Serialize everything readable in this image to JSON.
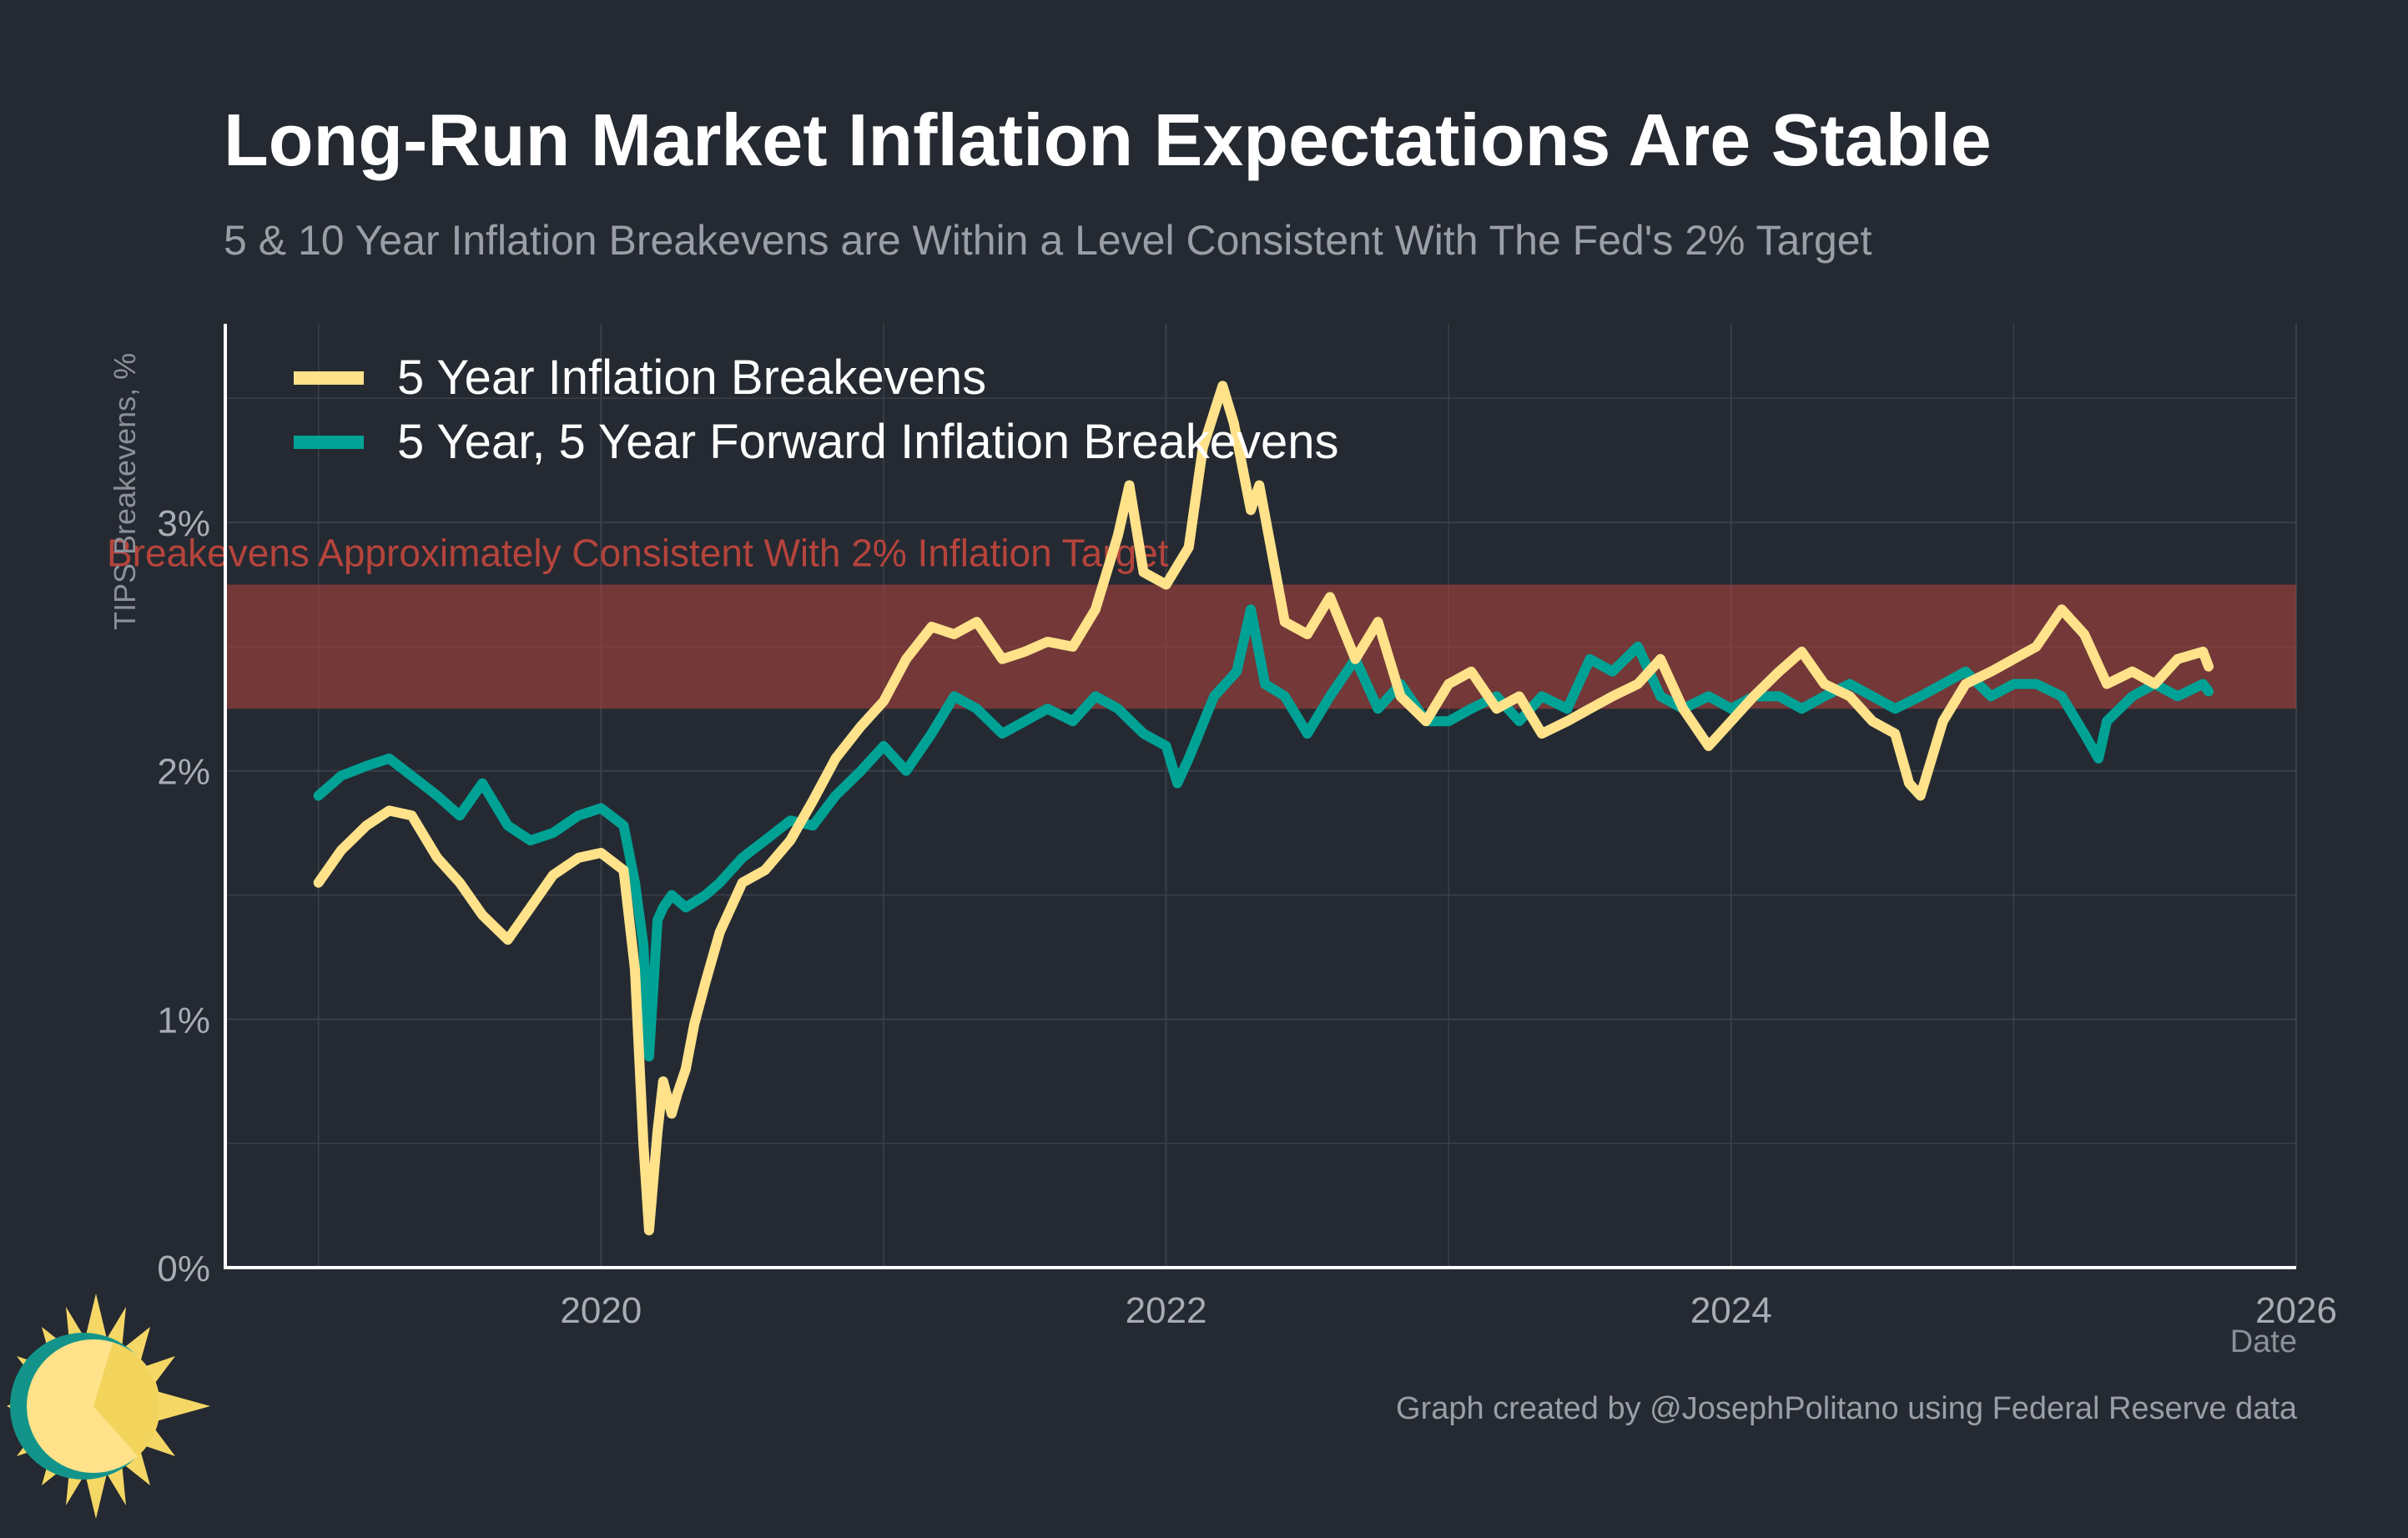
{
  "colors": {
    "background": "#252a32",
    "series_5y": "#ffe28a",
    "series_5y5y": "#00a296",
    "band": "#b5443c",
    "grid": "#3a3f48",
    "axis": "#ffffff"
  },
  "chart_data": {
    "type": "line",
    "title": "Long-Run Market Inflation Expectations Are Stable",
    "subtitle": "5 & 10 Year Inflation Breakevens are Within a Level Consistent With The Fed's 2% Target",
    "xlabel": "Date",
    "ylabel": "TIPS Breakevens, %",
    "xlim": [
      2018.67,
      2026.0
    ],
    "ylim": [
      0,
      3.8
    ],
    "x_ticks": [
      2020,
      2022,
      2024,
      2026
    ],
    "x_tick_labels": [
      "2020",
      "2022",
      "2024",
      "2026"
    ],
    "y_ticks": [
      0,
      1,
      2,
      3
    ],
    "y_tick_labels": [
      "0%",
      "1%",
      "2%",
      "3%"
    ],
    "grid": true,
    "legend_position": "top-left",
    "caption": "Graph created by @JosephPolitano using Federal Reserve data",
    "band": {
      "label": "Breakevens Approximately Consistent With 2% Inflation Target",
      "y_range": [
        2.25,
        2.75
      ]
    },
    "series": [
      {
        "name": "5 Year Inflation Breakevens",
        "color": "#ffe28a",
        "x": [
          2019.0,
          2019.08,
          2019.17,
          2019.25,
          2019.33,
          2019.42,
          2019.5,
          2019.58,
          2019.67,
          2019.75,
          2019.83,
          2019.92,
          2020.0,
          2020.08,
          2020.12,
          2020.15,
          2020.17,
          2020.2,
          2020.22,
          2020.25,
          2020.27,
          2020.3,
          2020.33,
          2020.37,
          2020.42,
          2020.5,
          2020.58,
          2020.67,
          2020.75,
          2020.83,
          2020.92,
          2021.0,
          2021.08,
          2021.17,
          2021.25,
          2021.33,
          2021.42,
          2021.5,
          2021.58,
          2021.67,
          2021.75,
          2021.83,
          2021.87,
          2021.92,
          2022.0,
          2022.08,
          2022.13,
          2022.2,
          2022.24,
          2022.3,
          2022.33,
          2022.42,
          2022.5,
          2022.58,
          2022.67,
          2022.75,
          2022.83,
          2022.92,
          2023.0,
          2023.08,
          2023.17,
          2023.25,
          2023.33,
          2023.42,
          2023.5,
          2023.58,
          2023.67,
          2023.75,
          2023.83,
          2023.92,
          2024.0,
          2024.08,
          2024.17,
          2024.25,
          2024.33,
          2024.42,
          2024.5,
          2024.58,
          2024.63,
          2024.67,
          2024.75,
          2024.83,
          2024.92,
          2025.0,
          2025.08,
          2025.17,
          2025.25,
          2025.33,
          2025.42,
          2025.5,
          2025.58,
          2025.67,
          2025.69
        ],
        "values": [
          1.55,
          1.68,
          1.78,
          1.84,
          1.82,
          1.65,
          1.55,
          1.42,
          1.32,
          1.45,
          1.58,
          1.65,
          1.67,
          1.6,
          1.2,
          0.5,
          0.15,
          0.55,
          0.75,
          0.62,
          0.7,
          0.8,
          0.98,
          1.15,
          1.35,
          1.55,
          1.6,
          1.72,
          1.88,
          2.05,
          2.18,
          2.28,
          2.45,
          2.58,
          2.55,
          2.6,
          2.45,
          2.48,
          2.52,
          2.5,
          2.65,
          2.95,
          3.15,
          2.8,
          2.75,
          2.9,
          3.3,
          3.55,
          3.4,
          3.05,
          3.15,
          2.6,
          2.55,
          2.7,
          2.45,
          2.6,
          2.3,
          2.2,
          2.35,
          2.4,
          2.25,
          2.3,
          2.15,
          2.2,
          2.25,
          2.3,
          2.35,
          2.45,
          2.25,
          2.1,
          2.2,
          2.3,
          2.4,
          2.48,
          2.35,
          2.3,
          2.2,
          2.15,
          1.95,
          1.9,
          2.2,
          2.35,
          2.4,
          2.45,
          2.5,
          2.65,
          2.55,
          2.35,
          2.4,
          2.35,
          2.45,
          2.48,
          2.42
        ]
      },
      {
        "name": "5 Year, 5 Year Forward Inflation Breakevens",
        "color": "#00a296",
        "x": [
          2019.0,
          2019.08,
          2019.17,
          2019.25,
          2019.33,
          2019.42,
          2019.5,
          2019.58,
          2019.67,
          2019.75,
          2019.83,
          2019.92,
          2020.0,
          2020.08,
          2020.12,
          2020.15,
          2020.17,
          2020.2,
          2020.22,
          2020.25,
          2020.3,
          2020.37,
          2020.42,
          2020.5,
          2020.58,
          2020.67,
          2020.75,
          2020.83,
          2020.92,
          2021.0,
          2021.08,
          2021.17,
          2021.25,
          2021.33,
          2021.42,
          2021.5,
          2021.58,
          2021.67,
          2021.75,
          2021.83,
          2021.92,
          2022.0,
          2022.04,
          2022.08,
          2022.17,
          2022.25,
          2022.3,
          2022.35,
          2022.42,
          2022.5,
          2022.58,
          2022.67,
          2022.75,
          2022.83,
          2022.92,
          2023.0,
          2023.08,
          2023.17,
          2023.25,
          2023.33,
          2023.42,
          2023.5,
          2023.58,
          2023.67,
          2023.75,
          2023.83,
          2023.92,
          2024.0,
          2024.08,
          2024.17,
          2024.25,
          2024.33,
          2024.42,
          2024.5,
          2024.58,
          2024.67,
          2024.75,
          2024.83,
          2024.92,
          2025.0,
          2025.08,
          2025.17,
          2025.25,
          2025.3,
          2025.33,
          2025.42,
          2025.5,
          2025.58,
          2025.67,
          2025.69
        ],
        "values": [
          1.9,
          1.98,
          2.02,
          2.05,
          1.98,
          1.9,
          1.82,
          1.95,
          1.78,
          1.72,
          1.75,
          1.82,
          1.85,
          1.78,
          1.55,
          1.3,
          0.85,
          1.4,
          1.45,
          1.5,
          1.45,
          1.5,
          1.55,
          1.65,
          1.72,
          1.8,
          1.78,
          1.9,
          2.0,
          2.1,
          2.0,
          2.15,
          2.3,
          2.25,
          2.15,
          2.2,
          2.25,
          2.2,
          2.3,
          2.25,
          2.15,
          2.1,
          1.95,
          2.05,
          2.3,
          2.4,
          2.65,
          2.35,
          2.3,
          2.15,
          2.3,
          2.45,
          2.25,
          2.35,
          2.2,
          2.2,
          2.25,
          2.3,
          2.2,
          2.3,
          2.25,
          2.45,
          2.4,
          2.5,
          2.3,
          2.25,
          2.3,
          2.25,
          2.3,
          2.3,
          2.25,
          2.3,
          2.35,
          2.3,
          2.25,
          2.3,
          2.35,
          2.4,
          2.3,
          2.35,
          2.35,
          2.3,
          2.15,
          2.05,
          2.2,
          2.3,
          2.35,
          2.3,
          2.35,
          2.32
        ]
      }
    ]
  }
}
